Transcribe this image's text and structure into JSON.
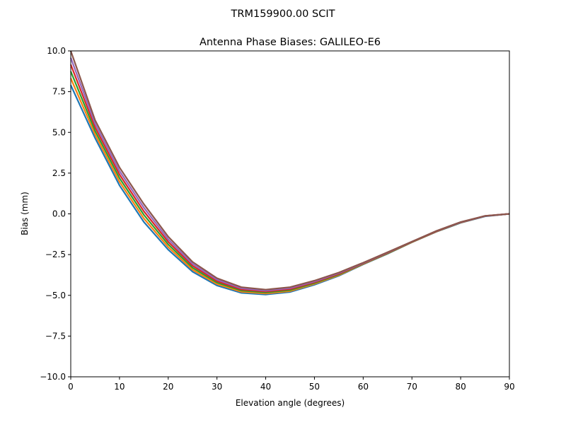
{
  "chart_data": {
    "type": "line",
    "suptitle": "TRM159900.00    SCIT",
    "title": "Antenna Phase Biases: GALILEO-E6",
    "xlabel": "Elevation angle (degrees)",
    "ylabel": "Bias (mm)",
    "xlim": [
      0,
      90
    ],
    "ylim": [
      -10,
      10
    ],
    "xticks": [
      0,
      10,
      20,
      30,
      40,
      50,
      60,
      70,
      80,
      90
    ],
    "xtick_labels": [
      "0",
      "10",
      "20",
      "30",
      "40",
      "50",
      "60",
      "70",
      "80",
      "90"
    ],
    "yticks": [
      10,
      7.5,
      5,
      2.5,
      0,
      -2.5,
      -5,
      -7.5,
      -10
    ],
    "ytick_labels": [
      "10.0",
      "7.5",
      "5.0",
      "2.5",
      "0.0",
      "−2.5",
      "−5.0",
      "−7.5",
      "−10.0"
    ],
    "grid": false,
    "x": [
      0,
      5,
      10,
      15,
      20,
      25,
      30,
      35,
      40,
      45,
      50,
      55,
      60,
      65,
      70,
      75,
      80,
      85,
      90
    ],
    "colors": [
      "#1f77b4",
      "#ff7f0e",
      "#2ca02c",
      "#d62728",
      "#9467bd",
      "#8c564b",
      "#e377c2",
      "#7f7f7f",
      "#bcbd22",
      "#17becf"
    ],
    "series": [
      {
        "values": [
          7.9,
          4.65,
          1.75,
          -0.5,
          -2.2,
          -3.55,
          -4.4,
          -4.85,
          -4.95,
          -4.8,
          -4.35,
          -3.8,
          -3.1,
          -2.45,
          -1.75,
          -1.1,
          -0.55,
          -0.15,
          0
        ]
      },
      {
        "values": [
          8.32,
          4.87,
          1.97,
          -0.28,
          -2.04,
          -3.43,
          -4.31,
          -4.78,
          -4.89,
          -4.74,
          -4.3,
          -3.76,
          -3.08,
          -2.43,
          -1.74,
          -1.09,
          -0.54,
          -0.14,
          0
        ]
      },
      {
        "values": [
          8.74,
          5.09,
          2.19,
          -0.06,
          -1.88,
          -3.31,
          -4.22,
          -4.71,
          -4.83,
          -4.68,
          -4.25,
          -3.72,
          -3.06,
          -2.41,
          -1.73,
          -1.08,
          -0.53,
          -0.14,
          0
        ]
      },
      {
        "values": [
          9.16,
          5.31,
          2.41,
          0.16,
          -1.72,
          -3.19,
          -4.13,
          -4.64,
          -4.77,
          -4.62,
          -4.2,
          -3.68,
          -3.04,
          -2.39,
          -1.72,
          -1.07,
          -0.52,
          -0.13,
          0
        ]
      },
      {
        "values": [
          9.58,
          5.53,
          2.63,
          0.38,
          -1.56,
          -3.07,
          -4.04,
          -4.57,
          -4.71,
          -4.56,
          -4.15,
          -3.64,
          -3.02,
          -2.37,
          -1.71,
          -1.06,
          -0.51,
          -0.13,
          0
        ]
      },
      {
        "values": [
          10,
          5.75,
          2.85,
          0.6,
          -1.4,
          -2.95,
          -3.95,
          -4.5,
          -4.65,
          -4.5,
          -4.1,
          -3.6,
          -3.0,
          -2.35,
          -1.7,
          -1.05,
          -0.5,
          -0.12,
          0
        ]
      }
    ]
  }
}
